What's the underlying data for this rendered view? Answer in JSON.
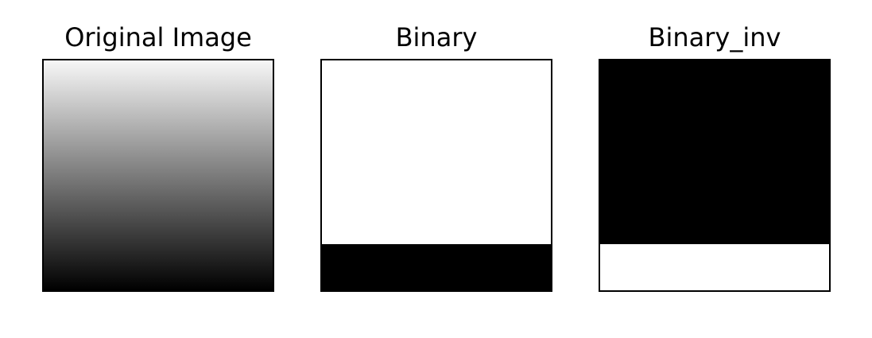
{
  "panels": [
    {
      "title": "Original Image",
      "kind": "gradient",
      "top_color": "#f7f7f7",
      "bottom_color": "#000000"
    },
    {
      "title": "Binary",
      "kind": "threshold",
      "upper_color": "#ffffff",
      "lower_color": "#000000",
      "threshold_fraction": 0.8
    },
    {
      "title": "Binary_inv",
      "kind": "threshold",
      "upper_color": "#000000",
      "lower_color": "#ffffff",
      "threshold_fraction": 0.8
    }
  ]
}
